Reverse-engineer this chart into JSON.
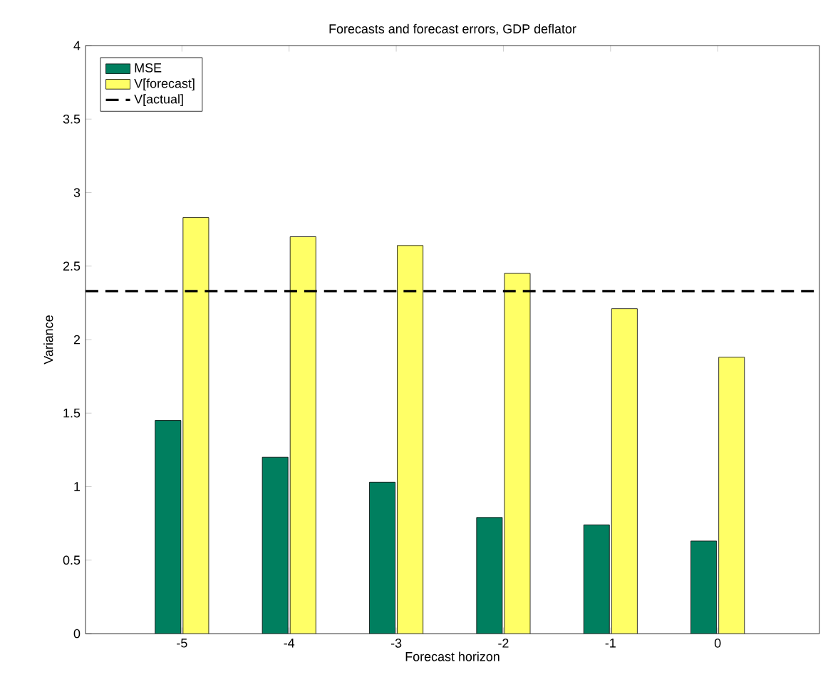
{
  "chart_data": {
    "type": "bar",
    "title": "Forecasts and forecast errors, GDP deflator",
    "xlabel": "Forecast horizon",
    "ylabel": "Variance",
    "categories": [
      "-5",
      "-4",
      "-3",
      "-2",
      "-1",
      "0"
    ],
    "series": [
      {
        "name": "MSE",
        "color": "#007f5f",
        "values": [
          1.45,
          1.2,
          1.03,
          0.79,
          0.74,
          0.63
        ]
      },
      {
        "name": "V[forecast]",
        "color": "#ffff66",
        "values": [
          2.83,
          2.7,
          2.64,
          2.45,
          2.21,
          1.88
        ]
      }
    ],
    "ref_lines": [
      {
        "axis": "y",
        "value": 2.33,
        "label": "V[actual]",
        "color": "#000000",
        "line_style": "dashed"
      }
    ],
    "ylim": [
      0,
      4
    ],
    "yticks": [
      0,
      0.5,
      1,
      1.5,
      2,
      2.5,
      3,
      3.5,
      4
    ],
    "grid": false,
    "legend": "top left"
  }
}
